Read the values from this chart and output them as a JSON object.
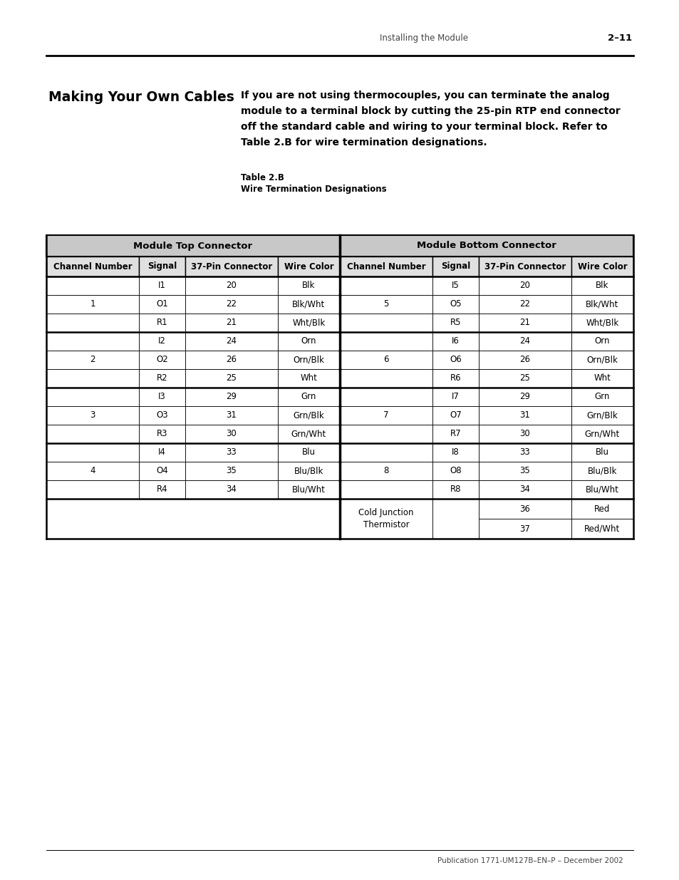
{
  "page_header_text": "Installing the Module",
  "page_number": "2–11",
  "section_title": "Making Your Own Cables",
  "body_text_lines": [
    "If you are not using thermocouples, you can terminate the analog",
    "module to a terminal block by cutting the 25-pin RTP end connector",
    "off the standard cable and wiring to your terminal block. Refer to",
    "Table 2.B for wire termination designations."
  ],
  "table_title_line1": "Table 2.B",
  "table_title_line2": "Wire Termination Designations",
  "group_header_top": "Module Top Connector",
  "group_header_bottom": "Module Bottom Connector",
  "col_headers": [
    "Channel Number",
    "Signal",
    "37-Pin Connector",
    "Wire Color"
  ],
  "table_data": [
    [
      "1",
      "I1",
      "20",
      "Blk",
      "5",
      "I5",
      "20",
      "Blk"
    ],
    [
      "1",
      "O1",
      "22",
      "Blk/Wht",
      "5",
      "O5",
      "22",
      "Blk/Wht"
    ],
    [
      "1",
      "R1",
      "21",
      "Wht/Blk",
      "5",
      "R5",
      "21",
      "Wht/Blk"
    ],
    [
      "2",
      "I2",
      "24",
      "Orn",
      "6",
      "I6",
      "24",
      "Orn"
    ],
    [
      "2",
      "O2",
      "26",
      "Orn/Blk",
      "6",
      "O6",
      "26",
      "Orn/Blk"
    ],
    [
      "2",
      "R2",
      "25",
      "Wht",
      "6",
      "R6",
      "25",
      "Wht"
    ],
    [
      "3",
      "I3",
      "29",
      "Grn",
      "7",
      "I7",
      "29",
      "Grn"
    ],
    [
      "3",
      "O3",
      "31",
      "Grn/Blk",
      "7",
      "O7",
      "31",
      "Grn/Blk"
    ],
    [
      "3",
      "R3",
      "30",
      "Grn/Wht",
      "7",
      "R7",
      "30",
      "Grn/Wht"
    ],
    [
      "4",
      "I4",
      "33",
      "Blu",
      "8",
      "I8",
      "33",
      "Blu"
    ],
    [
      "4",
      "O4",
      "35",
      "Blu/Blk",
      "8",
      "O8",
      "35",
      "Blu/Blk"
    ],
    [
      "4",
      "R4",
      "34",
      "Blu/Wht",
      "8",
      "R8",
      "34",
      "Blu/Wht"
    ]
  ],
  "cold_junction_rows": [
    [
      "",
      "",
      "36",
      "Red"
    ],
    [
      "",
      "",
      "37",
      "Red/Wht"
    ]
  ],
  "footer_text": "Publication 1771-UM127B–EN–P – December 2002",
  "bg_color": "#ffffff",
  "group_header_bg": "#c8c8c8",
  "col_header_bg": "#e0e0e0",
  "border_color": "#000000"
}
